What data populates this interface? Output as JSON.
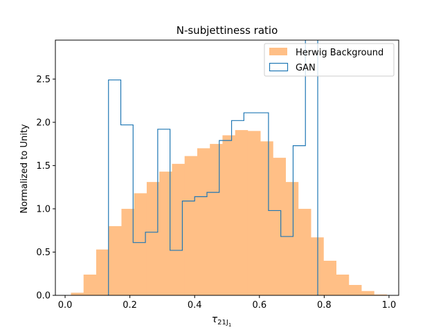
{
  "chart_data": {
    "type": "bar",
    "title": "N-subjettiness ratio",
    "xlabel_main": "τ",
    "xlabel_sub": "21J",
    "xlabel_subsub": "1",
    "ylabel": "Normalized to Unity",
    "xlim": [
      -0.03,
      1.03
    ],
    "ylim": [
      0,
      2.95
    ],
    "xticks": [
      0.0,
      0.2,
      0.4,
      0.6,
      0.8,
      1.0
    ],
    "xtick_labels": [
      "0.0",
      "0.2",
      "0.4",
      "0.6",
      "0.8",
      "1.0"
    ],
    "yticks": [
      0.0,
      0.5,
      1.0,
      1.5,
      2.0,
      2.5
    ],
    "ytick_labels": [
      "0.0",
      "0.5",
      "1.0",
      "1.5",
      "2.0",
      "2.5"
    ],
    "grid": false,
    "legend_position": "top-right",
    "series": [
      {
        "name": "Herwig Background",
        "style": "filled",
        "color": "#ffbf86",
        "bin_edges": [
          0.018,
          0.057,
          0.096,
          0.135,
          0.174,
          0.213,
          0.252,
          0.291,
          0.33,
          0.369,
          0.408,
          0.447,
          0.486,
          0.525,
          0.564,
          0.603,
          0.642,
          0.681,
          0.72,
          0.759,
          0.798,
          0.837,
          0.876,
          0.915,
          0.954,
          0.993
        ],
        "values": [
          0.03,
          0.24,
          0.53,
          0.8,
          1.0,
          1.18,
          1.31,
          1.43,
          1.52,
          1.61,
          1.7,
          1.75,
          1.85,
          1.91,
          1.9,
          1.78,
          1.59,
          1.31,
          1.0,
          0.67,
          0.4,
          0.24,
          0.12,
          0.05,
          0.01
        ]
      },
      {
        "name": "GAN",
        "style": "step",
        "color": "#1f77b4",
        "bin_edges": [
          0.134,
          0.172,
          0.21,
          0.248,
          0.286,
          0.324,
          0.362,
          0.4,
          0.438,
          0.476,
          0.514,
          0.552,
          0.59,
          0.628,
          0.666,
          0.704,
          0.742,
          0.78
        ],
        "values": [
          2.49,
          1.97,
          0.61,
          0.73,
          1.92,
          0.52,
          1.09,
          1.14,
          1.19,
          1.79,
          2.02,
          2.11,
          2.11,
          0.98,
          0.68,
          1.73,
          3.1
        ]
      }
    ]
  }
}
